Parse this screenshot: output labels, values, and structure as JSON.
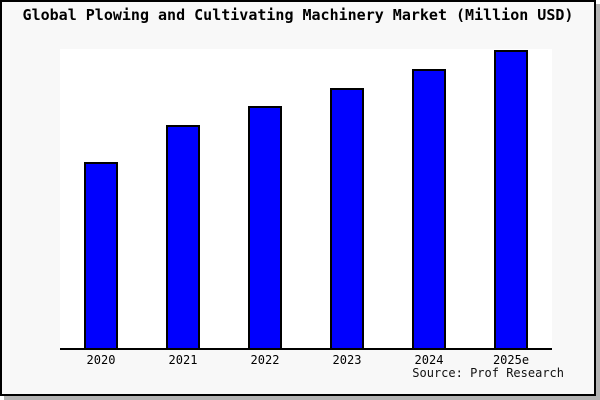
{
  "chart_data": {
    "type": "bar",
    "title": "Global Plowing and Cultivating Machinery Market (Million USD)",
    "categories": [
      "2020",
      "2021",
      "2022",
      "2023",
      "2024",
      "2025e"
    ],
    "values": [
      62.4,
      74.8,
      81.2,
      87.2,
      93.6,
      100
    ],
    "xlabel": "",
    "ylabel": "",
    "ylim": [
      0,
      100.3
    ],
    "y_axis_visible": false,
    "grid": false,
    "legend": false,
    "source_note": "Source: Prof Research",
    "colors": {
      "bar_fill": "#0000fe",
      "bar_border": "#000000",
      "axis": "#000000",
      "plot_background": "#ffffff",
      "canvas_background": "#f8f8f8",
      "frame_border": "#000000",
      "shadow": "#b3b3b3",
      "text": "#000000"
    }
  }
}
